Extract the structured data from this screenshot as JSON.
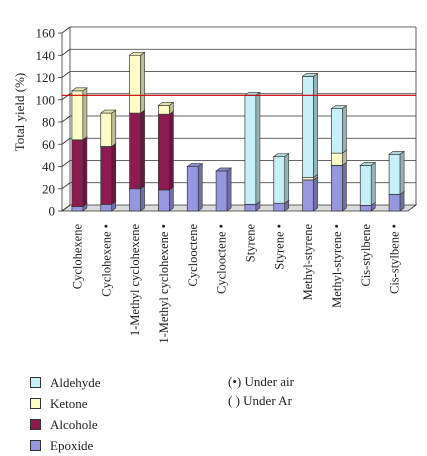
{
  "chart_data": {
    "type": "bar",
    "stacked": true,
    "ylabel": "Total yield (%)",
    "ylim": [
      0,
      160
    ],
    "yticks": [
      0,
      20,
      40,
      60,
      80,
      100,
      120,
      140,
      160
    ],
    "grid": true,
    "reference_line": {
      "value": 104,
      "color": "#cc0000"
    },
    "categories": [
      "Cyclohexene",
      "Cyclohexene •",
      "1-Methyl cyclohexene",
      "1-Methyl cyclohexene •",
      "Cyclooctene",
      "Cyclooctene •",
      "Styrene",
      "Styrene •",
      "Methyl-styrene",
      "Methyl-styrene •",
      "Cis-stylbene",
      "Cis-stylbene •"
    ],
    "series": [
      {
        "name": "Epoxide",
        "color": "#9797e0",
        "values": [
          4,
          6,
          20,
          19,
          40,
          36,
          6,
          7,
          28,
          41,
          5,
          15
        ]
      },
      {
        "name": "Alcohole",
        "color": "#8c1c50",
        "values": [
          60,
          52,
          68,
          68,
          0,
          0,
          0,
          0,
          0,
          0,
          0,
          0
        ]
      },
      {
        "name": "Ketone",
        "color": "#fcfcc6",
        "values": [
          44,
          30,
          52,
          8,
          0,
          0,
          0,
          0,
          2,
          11,
          0,
          0
        ]
      },
      {
        "name": "Aldehyde",
        "color": "#c6f0f6",
        "values": [
          0,
          0,
          0,
          0,
          0,
          0,
          98,
          42,
          91,
          40,
          36,
          36
        ]
      }
    ],
    "legend_order": [
      "Aldehyde",
      "Ketone",
      "Alcohole",
      "Epoxide"
    ],
    "legend_position": "bottom-left",
    "annotations": [
      "(•) Under air",
      "( ) Under Ar"
    ]
  }
}
